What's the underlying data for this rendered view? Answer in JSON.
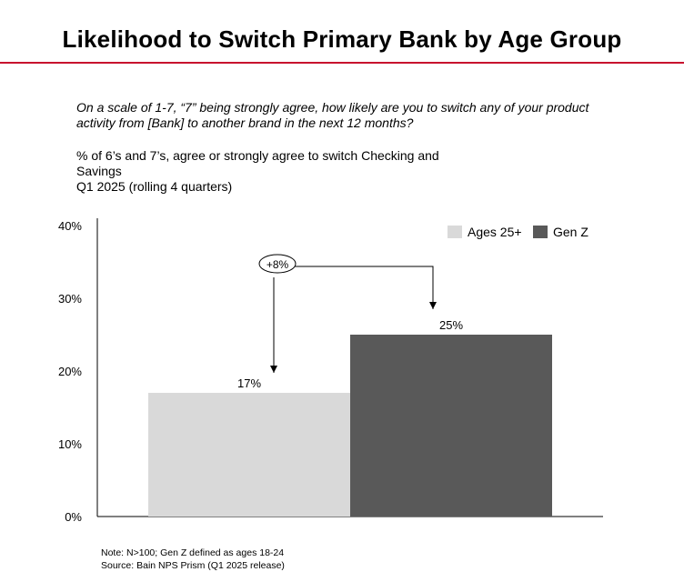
{
  "title": "Likelihood to Switch Primary Bank by Age Group",
  "question": "On a scale of 1-7, “7” being strongly agree, how likely are you to switch any of your product activity from [Bank] to another brand in the next 12 months?",
  "metric": "% of 6’s and 7’s, agree or strongly agree to switch Checking and Savings",
  "period": "Q1 2025 (rolling 4 quarters)",
  "footnotes": {
    "note": "Note: N>100; Gen Z defined as ages 18-24",
    "source": "Source: Bain NPS Prism (Q1 2025 release)"
  },
  "colors": {
    "accent_rule": "#c8102e",
    "ages_25_plus": "#d9d9d9",
    "gen_z": "#595959"
  },
  "chart_data": {
    "type": "bar",
    "categories": [
      "Ages 25+",
      "Gen Z"
    ],
    "values": [
      17,
      25
    ],
    "value_labels": [
      "17%",
      "25%"
    ],
    "ylim": [
      0,
      40
    ],
    "yticks": [
      0,
      10,
      20,
      30,
      40
    ],
    "ytick_labels": [
      "0%",
      "10%",
      "20%",
      "30%",
      "40%"
    ],
    "legend": {
      "placement": "top-right",
      "entries": [
        "Ages 25+",
        "Gen Z"
      ]
    },
    "annotation": {
      "label": "+8%",
      "from": "Ages 25+",
      "to": "Gen Z"
    },
    "grid": false
  }
}
